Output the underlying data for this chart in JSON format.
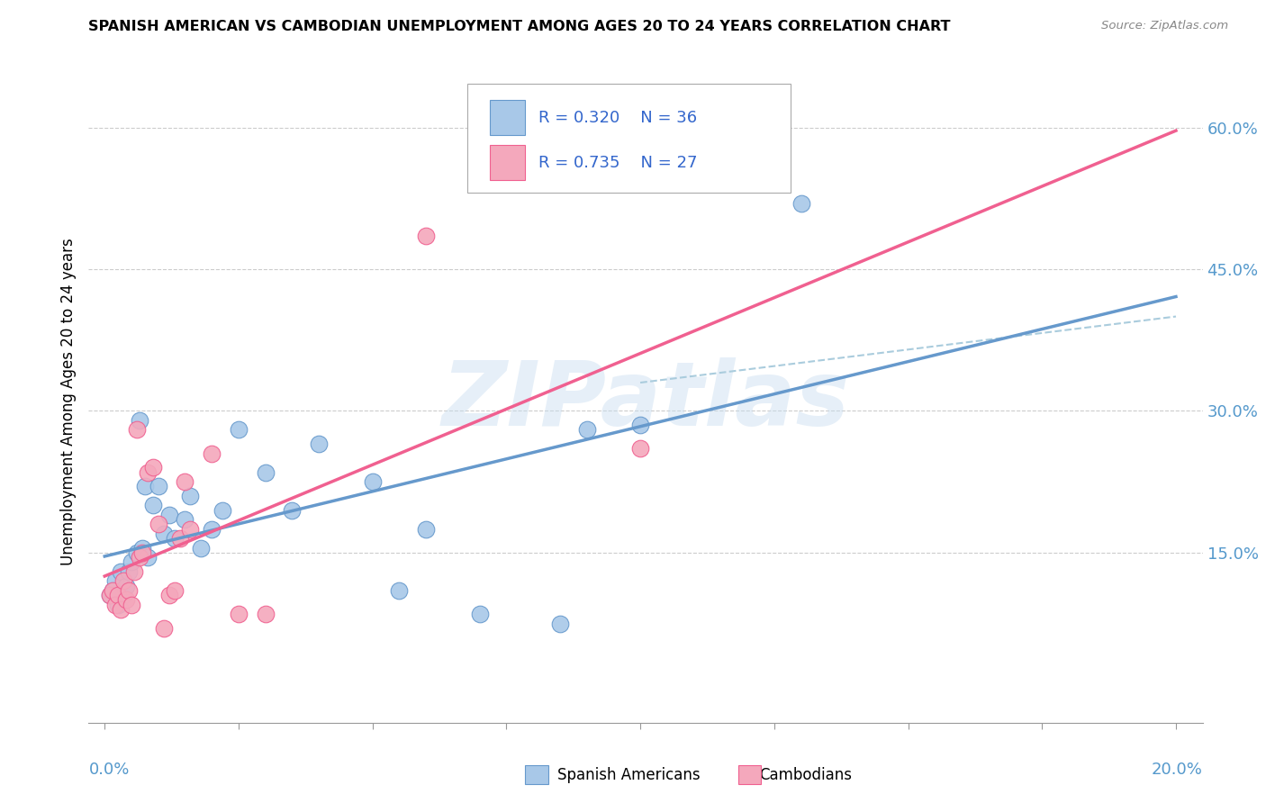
{
  "title": "SPANISH AMERICAN VS CAMBODIAN UNEMPLOYMENT AMONG AGES 20 TO 24 YEARS CORRELATION CHART",
  "source": "Source: ZipAtlas.com",
  "ylabel": "Unemployment Among Ages 20 to 24 years",
  "ytick_labels": [
    "15.0%",
    "30.0%",
    "45.0%",
    "60.0%"
  ],
  "ytick_values": [
    15.0,
    30.0,
    45.0,
    60.0
  ],
  "xtick_labels": [
    "0.0%",
    "20.0%"
  ],
  "xlim": [
    -0.3,
    20.5
  ],
  "ylim": [
    -3.0,
    65.0
  ],
  "watermark": "ZIPatlas",
  "legend_r_spanish": "R = 0.320",
  "legend_n_spanish": "N = 36",
  "legend_r_cambodian": "R = 0.735",
  "legend_n_cambodian": "N = 27",
  "spanish_color": "#a8c8e8",
  "cambodian_color": "#f4a8bc",
  "spanish_line_color": "#6699cc",
  "cambodian_line_color": "#f06090",
  "dashed_line_color": "#aaccdd",
  "spanish_americans_x": [
    0.1,
    0.15,
    0.2,
    0.25,
    0.3,
    0.35,
    0.4,
    0.45,
    0.5,
    0.6,
    0.65,
    0.7,
    0.75,
    0.8,
    0.9,
    1.0,
    1.1,
    1.2,
    1.3,
    1.5,
    1.6,
    1.8,
    2.0,
    2.2,
    2.5,
    3.0,
    3.5,
    4.0,
    5.0,
    6.0,
    7.0,
    8.5,
    9.0,
    10.0,
    13.0,
    5.5
  ],
  "spanish_americans_y": [
    10.5,
    11.0,
    12.0,
    9.5,
    13.0,
    10.5,
    11.5,
    13.0,
    14.0,
    15.0,
    29.0,
    15.5,
    22.0,
    14.5,
    20.0,
    22.0,
    17.0,
    19.0,
    16.5,
    18.5,
    21.0,
    15.5,
    17.5,
    19.5,
    28.0,
    23.5,
    19.5,
    26.5,
    22.5,
    17.5,
    8.5,
    7.5,
    28.0,
    28.5,
    52.0,
    11.0
  ],
  "cambodians_x": [
    0.1,
    0.15,
    0.2,
    0.25,
    0.3,
    0.35,
    0.4,
    0.45,
    0.5,
    0.55,
    0.6,
    0.65,
    0.7,
    0.8,
    0.9,
    1.0,
    1.1,
    1.2,
    1.3,
    1.4,
    1.5,
    1.6,
    2.0,
    2.5,
    3.0,
    6.0,
    10.0
  ],
  "cambodians_y": [
    10.5,
    11.0,
    9.5,
    10.5,
    9.0,
    12.0,
    10.0,
    11.0,
    9.5,
    13.0,
    28.0,
    14.5,
    15.0,
    23.5,
    24.0,
    18.0,
    7.0,
    10.5,
    11.0,
    16.5,
    22.5,
    17.5,
    25.5,
    8.5,
    8.5,
    48.5,
    26.0
  ]
}
